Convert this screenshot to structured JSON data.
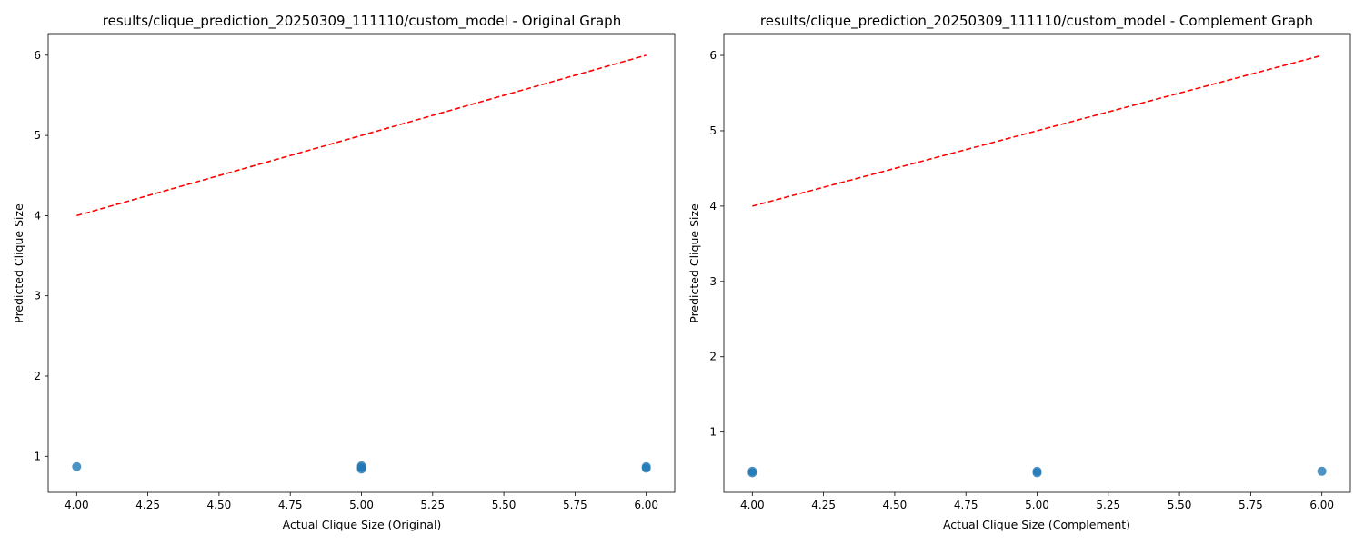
{
  "chart_data": [
    {
      "type": "scatter",
      "title": "results/clique_prediction_20250309_111110/custom_model - Original Graph",
      "xlabel": "Actual Clique Size (Original)",
      "ylabel": "Predicted Clique Size",
      "xlim": [
        3.9,
        6.1
      ],
      "ylim": [
        0.55,
        6.27
      ],
      "xticks": [
        "4.00",
        "4.25",
        "4.50",
        "4.75",
        "5.00",
        "5.25",
        "5.50",
        "5.75",
        "6.00"
      ],
      "xtick_values": [
        4.0,
        4.25,
        4.5,
        4.75,
        5.0,
        5.25,
        5.5,
        5.75,
        6.0
      ],
      "yticks": [
        "1",
        "2",
        "3",
        "4",
        "5",
        "6"
      ],
      "ytick_values": [
        1,
        2,
        3,
        4,
        5,
        6
      ],
      "points": [
        {
          "x": 4.0,
          "y": 0.87
        },
        {
          "x": 5.0,
          "y": 0.84
        },
        {
          "x": 5.0,
          "y": 0.86
        },
        {
          "x": 5.0,
          "y": 0.88
        },
        {
          "x": 6.0,
          "y": 0.85
        },
        {
          "x": 6.0,
          "y": 0.87
        }
      ],
      "reference_line": {
        "x": [
          4,
          6
        ],
        "y": [
          4,
          6
        ],
        "color": "#ff0000",
        "style": "dashed"
      },
      "point_color": "#1f77b4",
      "grid": false
    },
    {
      "type": "scatter",
      "title": "results/clique_prediction_20250309_111110/custom_model - Complement Graph",
      "xlabel": "Actual Clique Size (Complement)",
      "ylabel": "Predicted Clique Size",
      "xlim": [
        3.9,
        6.1
      ],
      "ylim": [
        0.2,
        6.29
      ],
      "xticks": [
        "4.00",
        "4.25",
        "4.50",
        "4.75",
        "5.00",
        "5.25",
        "5.50",
        "5.75",
        "6.00"
      ],
      "xtick_values": [
        4.0,
        4.25,
        4.5,
        4.75,
        5.0,
        5.25,
        5.5,
        5.75,
        6.0
      ],
      "yticks": [
        "1",
        "2",
        "3",
        "4",
        "5",
        "6"
      ],
      "ytick_values": [
        1,
        2,
        3,
        4,
        5,
        6
      ],
      "points": [
        {
          "x": 4.0,
          "y": 0.46
        },
        {
          "x": 4.0,
          "y": 0.48
        },
        {
          "x": 5.0,
          "y": 0.46
        },
        {
          "x": 5.0,
          "y": 0.48
        },
        {
          "x": 6.0,
          "y": 0.48
        }
      ],
      "reference_line": {
        "x": [
          4,
          6
        ],
        "y": [
          4,
          6
        ],
        "color": "#ff0000",
        "style": "dashed"
      },
      "point_color": "#1f77b4",
      "grid": false
    }
  ]
}
